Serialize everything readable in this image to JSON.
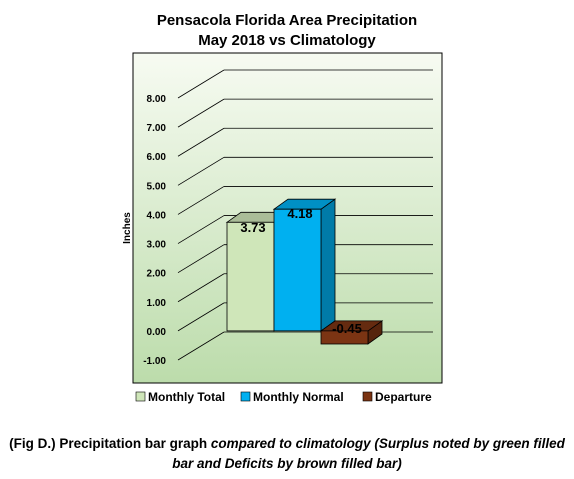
{
  "chart_data": {
    "type": "bar",
    "title": "Pensacola Florida Area Precipitation",
    "subtitle": "May 2018 vs Climatology",
    "ylabel": "Inches",
    "ylim": [
      -1,
      8
    ],
    "yticks": [
      "-1.00",
      "0.00",
      "1.00",
      "2.00",
      "3.00",
      "4.00",
      "5.00",
      "6.00",
      "7.00",
      "8.00"
    ],
    "grid": true,
    "legend_position": "bottom",
    "series": [
      {
        "name": "Monthly Total",
        "value": 3.73,
        "label": "3.73",
        "color": "#cfe6b9"
      },
      {
        "name": "Monthly Normal",
        "value": 4.18,
        "label": "4.18",
        "color": "#00b0f0"
      },
      {
        "name": "Departure",
        "value": -0.45,
        "label": "-0.45",
        "color": "#7b3413"
      }
    ]
  },
  "caption": {
    "prefix": "(Fig D.) Precipitation bar graph ",
    "italic": "compared to climatology (Surplus noted by green filled bar and Deficits by brown filled bar)"
  }
}
